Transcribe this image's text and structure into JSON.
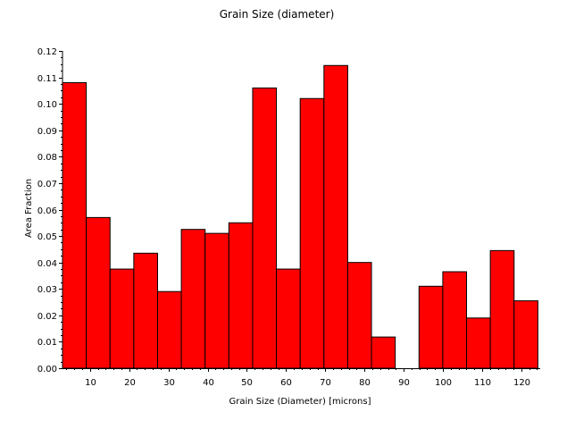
{
  "chart_data": {
    "type": "bar",
    "title": "Grain Size (diameter)",
    "xlabel": "Grain Size (Diameter) [microns]",
    "ylabel": "Area Fraction",
    "bar_color": "#ff0000",
    "bar_edge_color": "#000000",
    "xlim": [
      3.0,
      124.8
    ],
    "ylim": [
      0.0,
      0.12
    ],
    "bin_width": 6.06,
    "bins": [
      {
        "x0": 3.0,
        "x1": 9.06,
        "value": 0.108
      },
      {
        "x0": 9.06,
        "x1": 15.12,
        "value": 0.057
      },
      {
        "x0": 15.12,
        "x1": 21.18,
        "value": 0.0375
      },
      {
        "x0": 21.18,
        "x1": 27.24,
        "value": 0.0435
      },
      {
        "x0": 27.24,
        "x1": 33.3,
        "value": 0.029
      },
      {
        "x0": 33.3,
        "x1": 39.36,
        "value": 0.0525
      },
      {
        "x0": 39.36,
        "x1": 45.42,
        "value": 0.051
      },
      {
        "x0": 45.42,
        "x1": 51.48,
        "value": 0.055
      },
      {
        "x0": 51.48,
        "x1": 57.54,
        "value": 0.106
      },
      {
        "x0": 57.54,
        "x1": 63.6,
        "value": 0.0375
      },
      {
        "x0": 63.6,
        "x1": 69.66,
        "value": 0.102
      },
      {
        "x0": 69.66,
        "x1": 75.72,
        "value": 0.1145
      },
      {
        "x0": 75.72,
        "x1": 81.78,
        "value": 0.04
      },
      {
        "x0": 81.78,
        "x1": 87.84,
        "value": 0.0118
      },
      {
        "x0": 87.84,
        "x1": 93.9,
        "value": 0.0
      },
      {
        "x0": 93.9,
        "x1": 99.96,
        "value": 0.031
      },
      {
        "x0": 99.96,
        "x1": 106.02,
        "value": 0.0365
      },
      {
        "x0": 106.02,
        "x1": 112.08,
        "value": 0.019
      },
      {
        "x0": 112.08,
        "x1": 118.14,
        "value": 0.0445
      },
      {
        "x0": 118.14,
        "x1": 124.2,
        "value": 0.0255
      }
    ],
    "x_ticks": [
      {
        "value": 10,
        "label": "10"
      },
      {
        "value": 20,
        "label": "20"
      },
      {
        "value": 30,
        "label": "30"
      },
      {
        "value": 40,
        "label": "40"
      },
      {
        "value": 50,
        "label": "50"
      },
      {
        "value": 60,
        "label": "60"
      },
      {
        "value": 70,
        "label": "70"
      },
      {
        "value": 80,
        "label": "80"
      },
      {
        "value": 90,
        "label": "90"
      },
      {
        "value": 100,
        "label": "100"
      },
      {
        "value": 110,
        "label": "110"
      },
      {
        "value": 120,
        "label": "120"
      }
    ],
    "y_ticks": [
      {
        "value": 0.0,
        "label": "0.00"
      },
      {
        "value": 0.01,
        "label": "0.01"
      },
      {
        "value": 0.02,
        "label": "0.02"
      },
      {
        "value": 0.03,
        "label": "0.03"
      },
      {
        "value": 0.04,
        "label": "0.04"
      },
      {
        "value": 0.05,
        "label": "0.05"
      },
      {
        "value": 0.06,
        "label": "0.06"
      },
      {
        "value": 0.07,
        "label": "0.07"
      },
      {
        "value": 0.08,
        "label": "0.08"
      },
      {
        "value": 0.09,
        "label": "0.09"
      },
      {
        "value": 0.1,
        "label": "0.10"
      },
      {
        "value": 0.11,
        "label": "0.11"
      },
      {
        "value": 0.12,
        "label": "0.12"
      }
    ],
    "grid": false,
    "legend": "none"
  }
}
